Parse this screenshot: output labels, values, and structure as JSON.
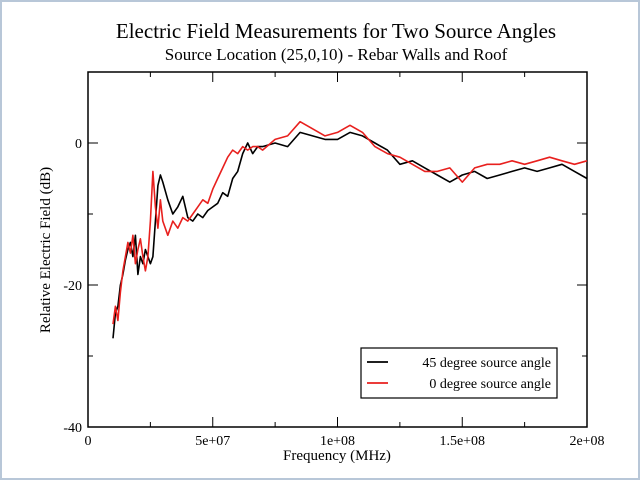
{
  "chart_data": {
    "type": "line",
    "title": "Electric Field Measurements for Two Source Angles",
    "subtitle": "Source Location (25,0,10) - Rebar Walls and Roof",
    "xlabel": "Frequency (MHz)",
    "ylabel": "Relative Electric Field (dB)",
    "xlim": [
      0,
      200000000
    ],
    "ylim": [
      -40,
      10
    ],
    "x_ticks": [
      {
        "value": 0,
        "label": "0"
      },
      {
        "value": 50000000,
        "label": "5e+07"
      },
      {
        "value": 100000000,
        "label": "1e+08"
      },
      {
        "value": 150000000,
        "label": "1.5e+08"
      },
      {
        "value": 200000000,
        "label": "2e+08"
      }
    ],
    "y_ticks": [
      {
        "value": 0,
        "label": "0"
      },
      {
        "value": -20,
        "label": "-20"
      },
      {
        "value": -40,
        "label": "-40"
      }
    ],
    "grid": false,
    "legend_position": "bottom-right",
    "series": [
      {
        "name": "45 degree source angle",
        "color": "#000000",
        "x": [
          10000000,
          11000000,
          12000000,
          13000000,
          14000000,
          15000000,
          16000000,
          17000000,
          18000000,
          19000000,
          20000000,
          21000000,
          22000000,
          23000000,
          24000000,
          25000000,
          26000000,
          27000000,
          28000000,
          29000000,
          30000000,
          32000000,
          34000000,
          36000000,
          38000000,
          40000000,
          42000000,
          44000000,
          46000000,
          48000000,
          50000000,
          52000000,
          54000000,
          56000000,
          58000000,
          60000000,
          62000000,
          64000000,
          66000000,
          68000000,
          70000000,
          75000000,
          80000000,
          85000000,
          90000000,
          95000000,
          100000000,
          105000000,
          110000000,
          115000000,
          120000000,
          125000000,
          130000000,
          135000000,
          140000000,
          145000000,
          150000000,
          155000000,
          160000000,
          165000000,
          170000000,
          175000000,
          180000000,
          185000000,
          190000000,
          195000000,
          200000000
        ],
        "values": [
          -27.5,
          -24,
          -23,
          -20,
          -18.5,
          -16.5,
          -15,
          -14,
          -16,
          -13,
          -18.5,
          -16,
          -17,
          -15,
          -16,
          -17,
          -16,
          -11,
          -6,
          -4.5,
          -5.5,
          -8,
          -10,
          -9,
          -7.5,
          -10.5,
          -11,
          -10,
          -10.5,
          -9.5,
          -9,
          -8.5,
          -7,
          -7.5,
          -5,
          -4,
          -1.5,
          0,
          -1.5,
          -0.5,
          -0.5,
          0,
          -0.5,
          1.5,
          1,
          0.5,
          0.5,
          1.5,
          1,
          0,
          -1,
          -3,
          -2.5,
          -3.5,
          -4.5,
          -5.5,
          -4.5,
          -4,
          -5,
          -4.5,
          -4,
          -3.5,
          -4,
          -3.5,
          -3,
          -4,
          -5
        ]
      },
      {
        "name": "0 degree source angle",
        "color": "#e8201e",
        "x": [
          10000000,
          11000000,
          12000000,
          13000000,
          14000000,
          15000000,
          16000000,
          17000000,
          18000000,
          19000000,
          20000000,
          21000000,
          22000000,
          23000000,
          24000000,
          25000000,
          26000000,
          27000000,
          28000000,
          29000000,
          30000000,
          32000000,
          34000000,
          36000000,
          38000000,
          40000000,
          42000000,
          44000000,
          46000000,
          48000000,
          50000000,
          52000000,
          54000000,
          56000000,
          58000000,
          60000000,
          62000000,
          64000000,
          66000000,
          68000000,
          70000000,
          75000000,
          80000000,
          85000000,
          90000000,
          95000000,
          100000000,
          105000000,
          110000000,
          115000000,
          120000000,
          125000000,
          130000000,
          135000000,
          140000000,
          145000000,
          150000000,
          155000000,
          160000000,
          165000000,
          170000000,
          175000000,
          180000000,
          185000000,
          190000000,
          195000000,
          200000000
        ],
        "values": [
          -25.5,
          -23,
          -25,
          -21,
          -18,
          -16,
          -14,
          -15.5,
          -13,
          -17,
          -15,
          -13.5,
          -16,
          -18,
          -16,
          -11,
          -4,
          -9,
          -12,
          -8,
          -11,
          -13,
          -11,
          -12,
          -10.5,
          -11,
          -10,
          -9,
          -8,
          -8.5,
          -6.5,
          -5,
          -3.5,
          -2,
          -1,
          -1.5,
          -0.5,
          -1,
          -0.5,
          -0.5,
          -1,
          0.5,
          1,
          3,
          2,
          1,
          1.5,
          2.5,
          1.5,
          -0.5,
          -1.5,
          -2,
          -3,
          -4,
          -4,
          -3.5,
          -5.5,
          -3.5,
          -3,
          -3,
          -2.5,
          -3,
          -2.5,
          -2,
          -2.5,
          -3,
          -2.5
        ]
      }
    ]
  }
}
